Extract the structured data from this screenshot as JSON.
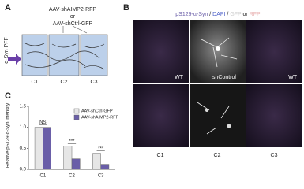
{
  "panel_labels": {
    "a": "A",
    "b": "B",
    "c": "C"
  },
  "panel_a": {
    "vector_top": "AAV-shAIMP2-RFP",
    "connector": "or",
    "vector_bottom": "AAV-shCtrl-GFP",
    "input": "α-Syn PFF",
    "chambers": [
      "C1",
      "C2",
      "C3"
    ]
  },
  "panel_b": {
    "header": [
      "pS129-α-Syn",
      " / ",
      "DAPI",
      " / ",
      "GFP",
      " or ",
      "RFP"
    ],
    "image_labels": [
      "WT",
      "shControl",
      "WT"
    ],
    "columns": [
      "C1",
      "C2",
      "C3"
    ]
  },
  "chart_data": {
    "type": "bar",
    "y_label": "Relative pS129-α-Syn intensity",
    "categories": [
      "C1",
      "C2",
      "C3"
    ],
    "series": [
      {
        "name": "AAV-shCtrl-GFP",
        "color": "#e6e6e6",
        "values": [
          1.0,
          0.55,
          0.38
        ]
      },
      {
        "name": "AAV-shAIMP2-RFP",
        "color": "#6a5ea8",
        "values": [
          1.0,
          0.25,
          0.12
        ]
      }
    ],
    "significance": [
      "NS",
      "***",
      "***"
    ],
    "ylim": [
      0,
      1.5
    ],
    "yticks": [
      {
        "value": 0,
        "label": "0.0"
      },
      {
        "value": 0.5,
        "label": "0.5"
      },
      {
        "value": 1,
        "label": "1.0"
      },
      {
        "value": 1.5,
        "label": "1.5"
      }
    ],
    "legend": "top-right"
  }
}
